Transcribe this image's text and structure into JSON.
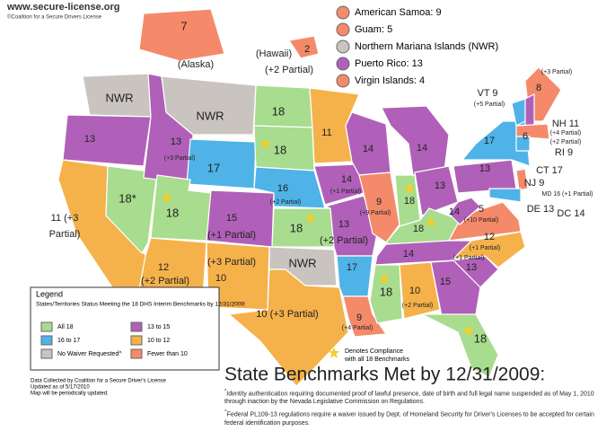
{
  "header": {
    "site": "www.secure-license.org",
    "credit": "©Coalition for a Secure Drivers License"
  },
  "territories": [
    {
      "label": "American Samoa: 9",
      "color": "#f48a6a"
    },
    {
      "label": "Guam: 5",
      "color": "#f48a6a"
    },
    {
      "label": "Northern Mariana Islands (NWR)",
      "color": "#c9c4c0"
    },
    {
      "label": "Puerto Rico: 13",
      "color": "#b060b8"
    },
    {
      "label": "Virgin Islands: 4",
      "color": "#f48a6a"
    }
  ],
  "map_labels": [
    "7",
    "(Alaska)",
    "(Hawaii)",
    "2",
    "(+2 Partial)",
    "NWR",
    "13",
    "13",
    "(+3 Partial)",
    "NWR",
    "18",
    "18",
    "11",
    "14",
    "14",
    "17",
    "16",
    "(+2 Partial)",
    "14",
    "(+1 Partial)",
    "9",
    "(+9 Partial)",
    "18",
    "13",
    "13",
    "17",
    "18*",
    "18",
    "15",
    "(+1 Partial)",
    "11 (+3",
    "Partial)",
    "18",
    "13",
    "(+2 Partial)",
    "18",
    "14",
    "5",
    "(+10 Partial)",
    "12",
    "(+1 Partial)",
    "(+3 Partial)",
    "10",
    "14",
    "12",
    "(+2 Partial)",
    "NWR",
    "17",
    "(+1 Partial)",
    "13",
    "18",
    "10",
    "(+2 Partial)",
    "15",
    "10 (+3 Partial)",
    "9",
    "(+4 Partial)",
    "18",
    "8",
    "(+3 Partial)",
    "VT 9",
    "(+5 Partial)",
    "NH 11",
    "(+4 Partial)",
    "6",
    "(+2 Partial)",
    "RI 9",
    "CT 17",
    "NJ 9",
    "MD 16 (+1 Partial)",
    "DE 13",
    "DC 14"
  ],
  "legend": {
    "title": "Legend",
    "subtitle": "States/Territories Status Meeting the 18 DHS Interim Benchmarks by 12/31/2009:",
    "items": [
      {
        "label": "All 18",
        "color": "#a8dc8e"
      },
      {
        "label": "16 to 17",
        "color": "#4fb3e8"
      },
      {
        "label": "No Waiver Requested^",
        "color": "#c9c4c0"
      },
      {
        "label": "13 to 15",
        "color": "#b060b8"
      },
      {
        "label": "10 to 12",
        "color": "#f5b14a"
      },
      {
        "label": "Fewer than 10",
        "color": "#f48a6a"
      }
    ]
  },
  "star_note": [
    "Denotes Compliance",
    "with all 18 Benchmarks"
  ],
  "source": [
    "Data Collected by Coalition for a Secure Driver's License",
    "Updated as of 5/17/2010",
    "Map will be periodically updated."
  ],
  "title": "State Benchmarks Met by 12/31/2009:",
  "notes": [
    {
      "mark": "*",
      "text": "Identity authentication requiring documented proof of lawful presence, date of birth and full legal name suspended as of May 1, 2010 through inaction by the Nevada Legislative Commission on Regulations."
    },
    {
      "mark": "^",
      "text": "Federal PL109-13 regulations require a waiver issued by Dept. of Homeland Security for Driver's Licenses to be accepted for certain federal identification purposes."
    }
  ]
}
